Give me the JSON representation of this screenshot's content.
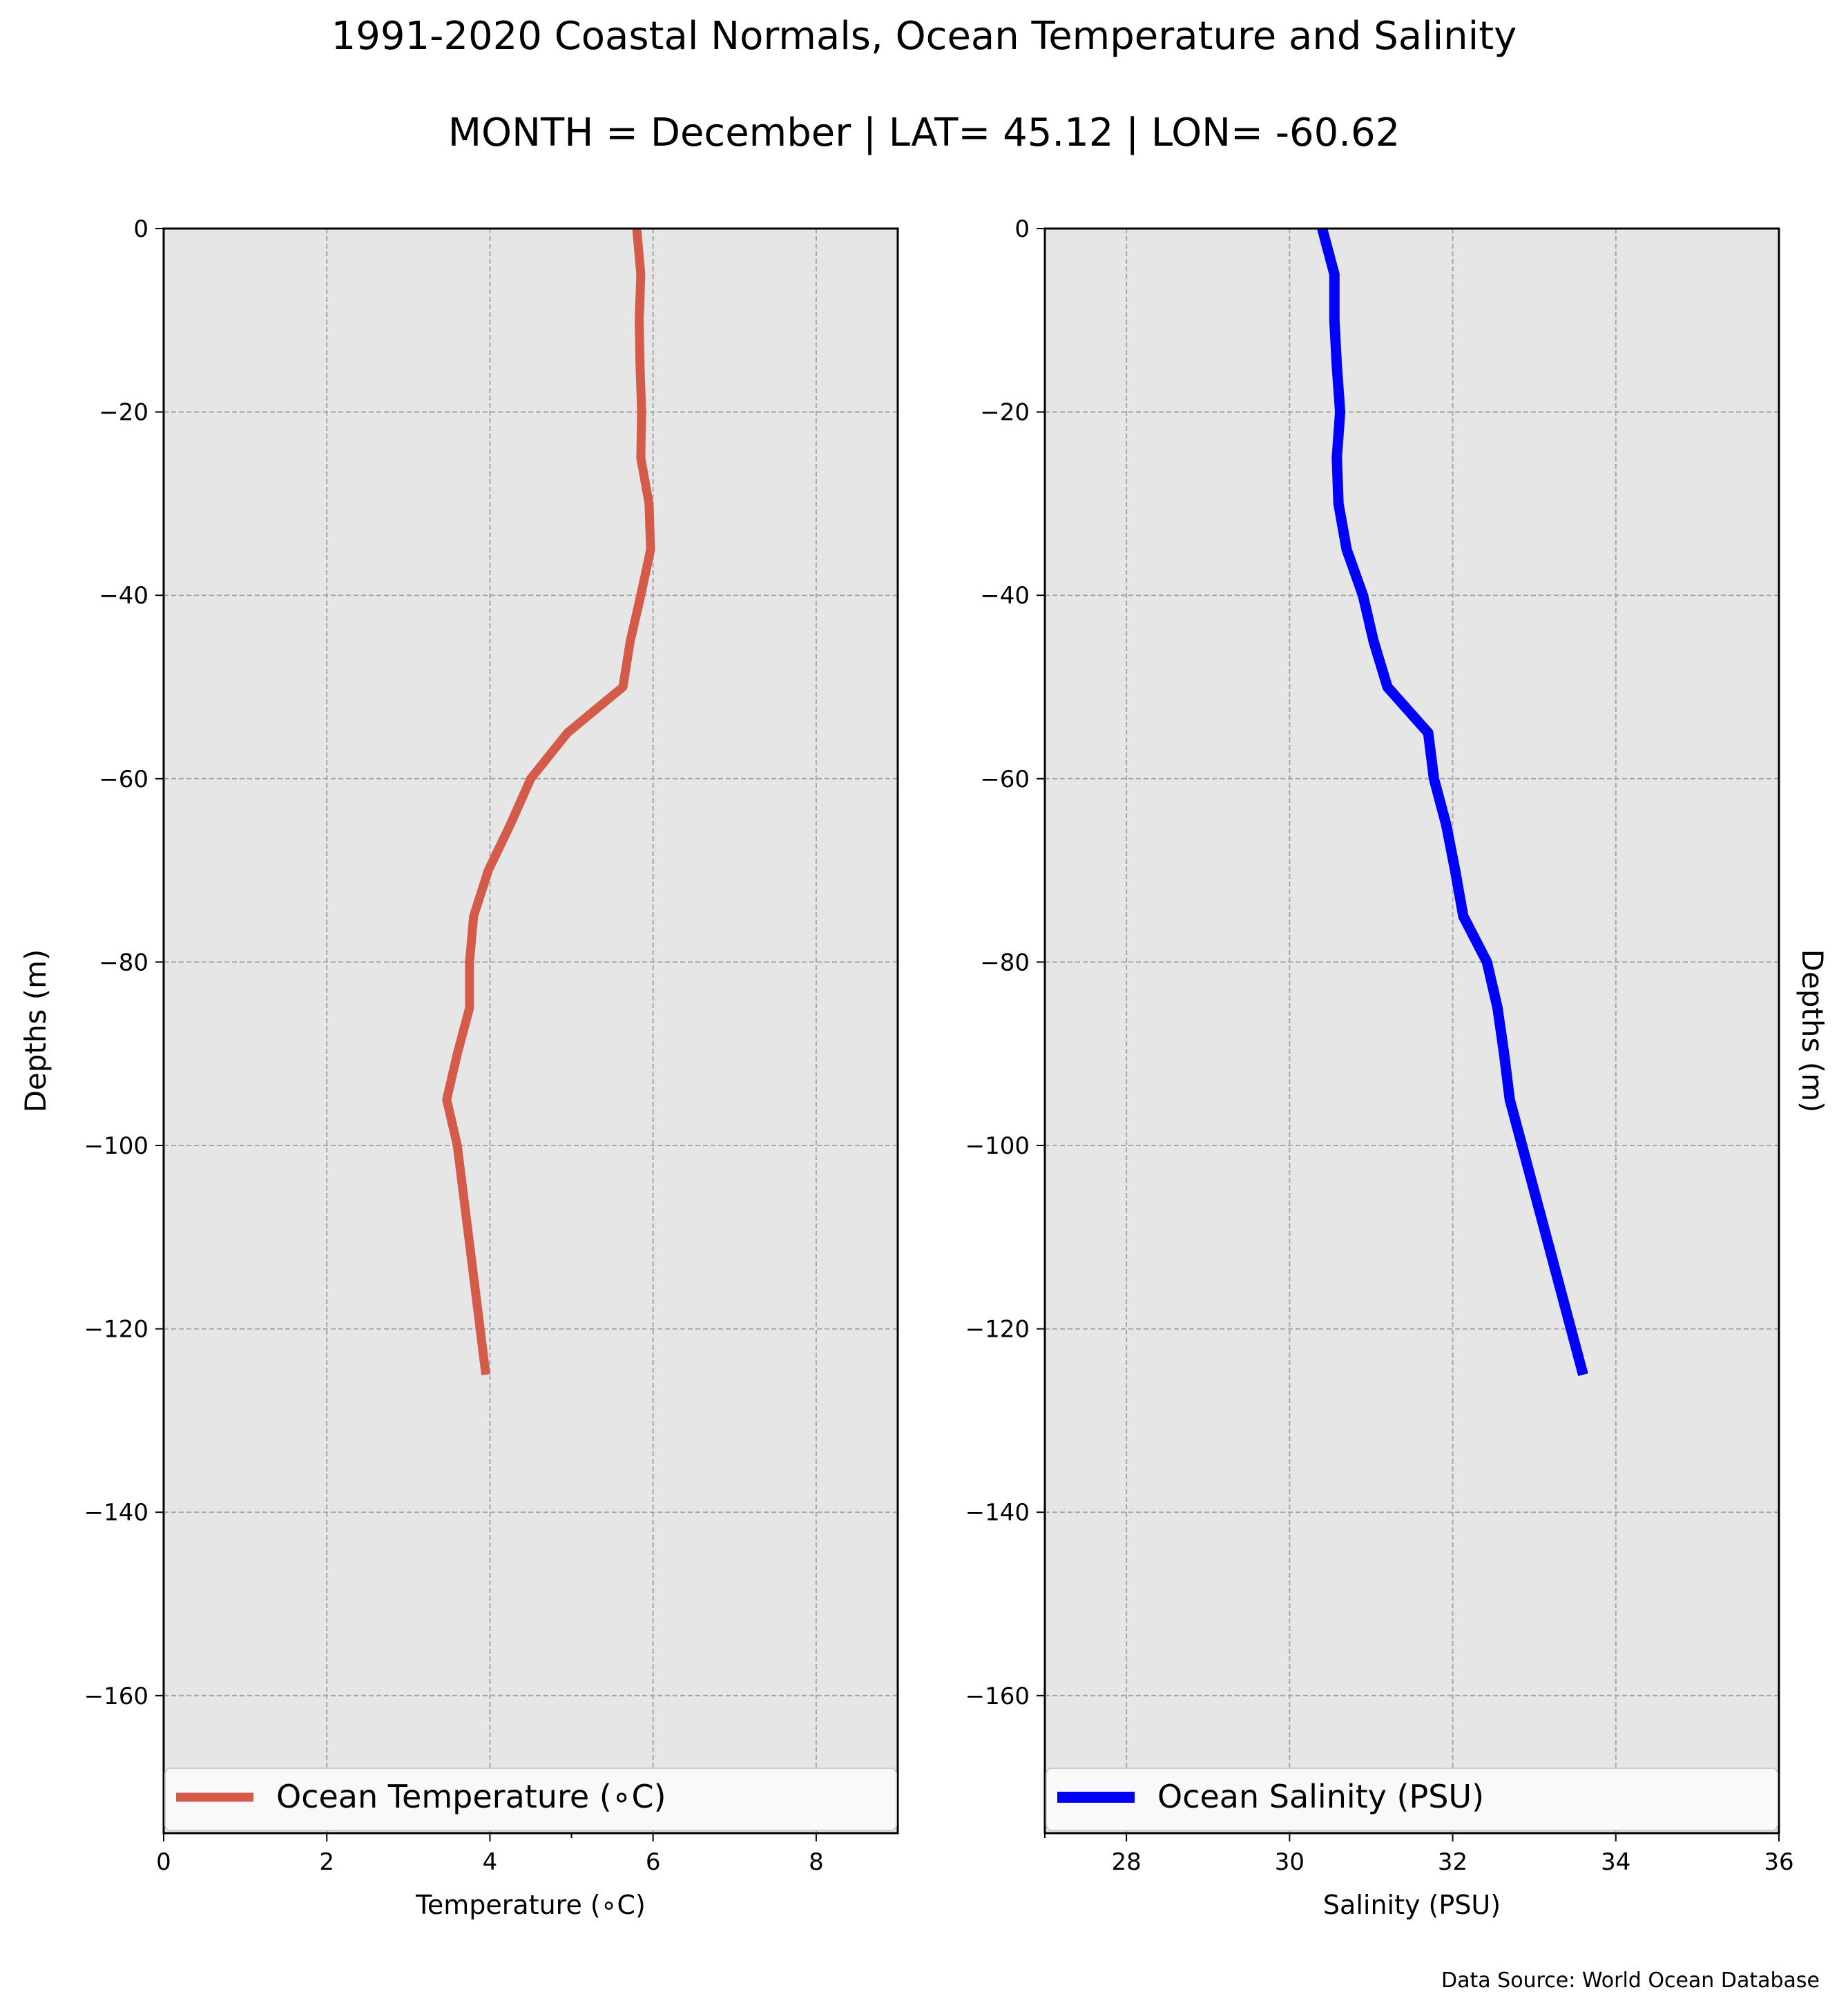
{
  "title": "1991-2020 Coastal Normals, Ocean Temperature and Salinity",
  "subtitle": "MONTH = December | LAT= 45.12 | LON= -60.62",
  "source": "Data Source: World Ocean Database",
  "chart_data": [
    {
      "type": "line",
      "xlabel": "Temperature (∘C)",
      "ylabel": "Depths (m)",
      "ylabel_side": "left",
      "xlim": [
        0,
        9
      ],
      "ylim": [
        -175,
        0
      ],
      "xticks": [
        0,
        2,
        4,
        6,
        8
      ],
      "xtick_labels": [
        "0",
        "2",
        "4",
        "6",
        "8"
      ],
      "yticks": [
        0,
        -20,
        -40,
        -60,
        -80,
        -100,
        -120,
        -140,
        -160
      ],
      "ytick_labels": [
        "0",
        "−20",
        "−40",
        "−60",
        "−80",
        "−100",
        "−120",
        "−140",
        "−160"
      ],
      "grid": true,
      "background": "#e6e6e6",
      "legend_position": "bottom",
      "series": [
        {
          "name": "Ocean Temperature (∘C)",
          "color": "#d45b4a",
          "x": [
            5.8,
            5.85,
            5.83,
            5.84,
            5.86,
            5.85,
            5.95,
            5.97,
            5.85,
            5.72,
            5.63,
            4.95,
            4.5,
            4.25,
            3.98,
            3.8,
            3.75,
            3.75,
            3.6,
            3.47,
            3.6,
            3.95
          ],
          "y": [
            0,
            -5,
            -10,
            -15,
            -20,
            -25,
            -30,
            -35,
            -40,
            -45,
            -50,
            -55,
            -60,
            -65,
            -70,
            -75,
            -80,
            -85,
            -90,
            -95,
            -100,
            -125
          ]
        }
      ]
    },
    {
      "type": "line",
      "xlabel": "Salinity (PSU)",
      "ylabel": "Depths (m)",
      "ylabel_side": "right",
      "xlim": [
        27,
        36
      ],
      "ylim": [
        -175,
        0
      ],
      "xticks": [
        28,
        30,
        32,
        34,
        36
      ],
      "xtick_labels": [
        "28",
        "30",
        "32",
        "34",
        "36"
      ],
      "yticks": [
        0,
        -20,
        -40,
        -60,
        -80,
        -100,
        -120,
        -140,
        -160
      ],
      "ytick_labels": [
        "0",
        "−20",
        "−40",
        "−60",
        "−80",
        "−100",
        "−120",
        "−140",
        "−160"
      ],
      "grid": true,
      "background": "#e6e6e6",
      "legend_position": "bottom",
      "series": [
        {
          "name": "Ocean Salinity (PSU)",
          "color": "#0000ff",
          "x": [
            30.4,
            30.55,
            30.55,
            30.58,
            30.62,
            30.58,
            30.6,
            30.7,
            30.9,
            31.03,
            31.2,
            31.7,
            31.77,
            31.92,
            32.03,
            32.13,
            32.42,
            32.55,
            32.63,
            32.7,
            32.85,
            33.6
          ],
          "y": [
            0,
            -5,
            -10,
            -15,
            -20,
            -25,
            -30,
            -35,
            -40,
            -45,
            -50,
            -55,
            -60,
            -65,
            -70,
            -75,
            -80,
            -85,
            -90,
            -95,
            -100,
            -125
          ]
        }
      ]
    }
  ]
}
